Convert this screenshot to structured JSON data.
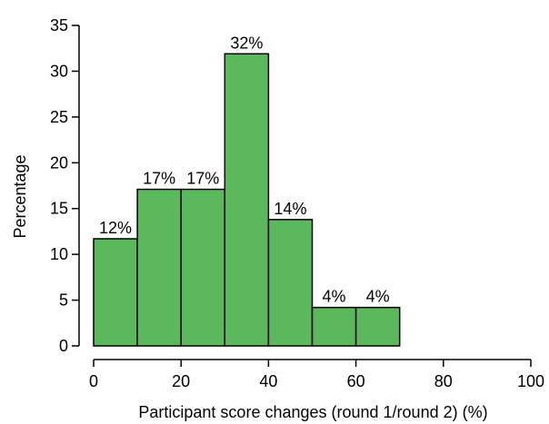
{
  "chart_data": {
    "type": "bar",
    "histogram": true,
    "bins": [
      {
        "x0": 0,
        "x1": 10,
        "value": 11.7,
        "label": "12%"
      },
      {
        "x0": 10,
        "x1": 20,
        "value": 17.1,
        "label": "17%"
      },
      {
        "x0": 20,
        "x1": 30,
        "value": 17.1,
        "label": "17%"
      },
      {
        "x0": 30,
        "x1": 40,
        "value": 31.9,
        "label": "32%"
      },
      {
        "x0": 40,
        "x1": 50,
        "value": 13.8,
        "label": "14%"
      },
      {
        "x0": 50,
        "x1": 60,
        "value": 4.2,
        "label": "4%"
      },
      {
        "x0": 60,
        "x1": 70,
        "value": 4.2,
        "label": "4%"
      }
    ],
    "xlabel": "Participant score changes (round 1/round 2) (%)",
    "ylabel": "Percentage",
    "xlim": [
      0,
      100
    ],
    "ylim": [
      0,
      35
    ],
    "xticks": [
      0,
      20,
      40,
      60,
      80,
      100
    ],
    "yticks": [
      0,
      5,
      10,
      15,
      20,
      25,
      30,
      35
    ],
    "grid": false,
    "bar_color": "#5cb85c",
    "bar_stroke": "#000000"
  }
}
